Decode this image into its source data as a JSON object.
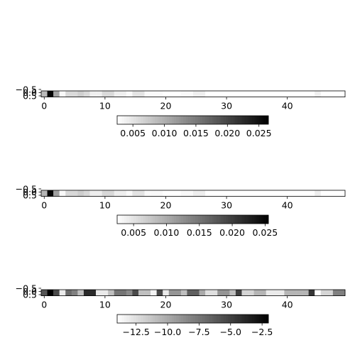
{
  "chart_data": [
    {
      "type": "heatmap",
      "colormap": "gray_r",
      "x_ticks": [
        0,
        10,
        20,
        30,
        40
      ],
      "y_ticks": [
        "−0.5",
        "0.0",
        "0.5"
      ],
      "xlim": [
        -0.5,
        49.5
      ],
      "values": [
        0.009,
        0.026,
        0.011,
        0.003,
        0.006,
        0.006,
        0.007,
        0.006,
        0.004,
        0.004,
        0.006,
        0.006,
        0.004,
        0.004,
        0.003,
        0.005,
        0.005,
        0.003,
        0.003,
        0.003,
        0.002,
        0.002,
        0.002,
        0.003,
        0.003,
        0.004,
        0.004,
        0.002,
        0.002,
        0.002,
        0.002,
        0.002,
        0.002,
        0.002,
        0.002,
        0.002,
        0.002,
        0.002,
        0.002,
        0.002,
        0.002,
        0.002,
        0.002,
        0.002,
        0.002,
        0.004,
        0.002,
        0.002,
        0.002,
        0.002
      ],
      "colorbar": {
        "vmin": 0.0025,
        "vmax": 0.0265,
        "ticks": [
          0.005,
          0.01,
          0.015,
          0.02,
          0.025
        ],
        "tick_labels": [
          "0.005",
          "0.010",
          "0.015",
          "0.020",
          "0.025"
        ]
      }
    },
    {
      "type": "heatmap",
      "colormap": "gray_r",
      "x_ticks": [
        0,
        10,
        20,
        30,
        40
      ],
      "y_ticks": [
        "−0.5",
        "0.0",
        "0.5"
      ],
      "xlim": [
        -0.5,
        49.5
      ],
      "values": [
        0.009,
        0.025,
        0.011,
        0.003,
        0.006,
        0.006,
        0.007,
        0.006,
        0.004,
        0.004,
        0.006,
        0.006,
        0.004,
        0.004,
        0.003,
        0.005,
        0.005,
        0.003,
        0.003,
        0.003,
        0.002,
        0.002,
        0.002,
        0.003,
        0.003,
        0.004,
        0.004,
        0.002,
        0.002,
        0.002,
        0.002,
        0.002,
        0.002,
        0.002,
        0.002,
        0.002,
        0.002,
        0.002,
        0.002,
        0.002,
        0.002,
        0.002,
        0.002,
        0.002,
        0.002,
        0.004,
        0.002,
        0.002,
        0.002,
        0.002
      ],
      "colorbar": {
        "vmin": 0.0025,
        "vmax": 0.0255,
        "ticks": [
          0.005,
          0.01,
          0.015,
          0.02,
          0.025
        ],
        "tick_labels": [
          "0.005",
          "0.010",
          "0.015",
          "0.020",
          "0.025"
        ]
      }
    },
    {
      "type": "heatmap",
      "colormap": "gray_r",
      "x_ticks": [
        0,
        10,
        20,
        30,
        40
      ],
      "y_ticks": [
        "−0.5",
        "0.0",
        "0.5"
      ],
      "xlim": [
        -0.5,
        49.5
      ],
      "values": [
        -6.0,
        -2.0,
        -5.5,
        -13.0,
        -7.0,
        -8.0,
        -11.0,
        -4.0,
        -4.0,
        -13.0,
        -13.0,
        -11.0,
        -7.5,
        -7.5,
        -8.5,
        -5.5,
        -11.0,
        -11.0,
        -13.5,
        -5.5,
        -13.0,
        -9.0,
        -9.0,
        -11.0,
        -6.5,
        -6.5,
        -10.0,
        -12.5,
        -12.5,
        -9.0,
        -9.0,
        -11.0,
        -5.0,
        -12.0,
        -12.0,
        -10.5,
        -10.5,
        -13.0,
        -13.0,
        -13.0,
        -10.5,
        -10.5,
        -10.5,
        -10.5,
        -4.5,
        -14.0,
        -12.0,
        -12.0,
        -8.0,
        -8.0
      ],
      "colorbar": {
        "vmin": -14.0,
        "vmax": -2.0,
        "ticks": [
          -12.5,
          -10.0,
          -7.5,
          -5.0,
          -2.5
        ],
        "tick_labels": [
          "−12.5",
          "−10.0",
          "−7.5",
          "−5.0",
          "−2.5"
        ]
      }
    }
  ]
}
